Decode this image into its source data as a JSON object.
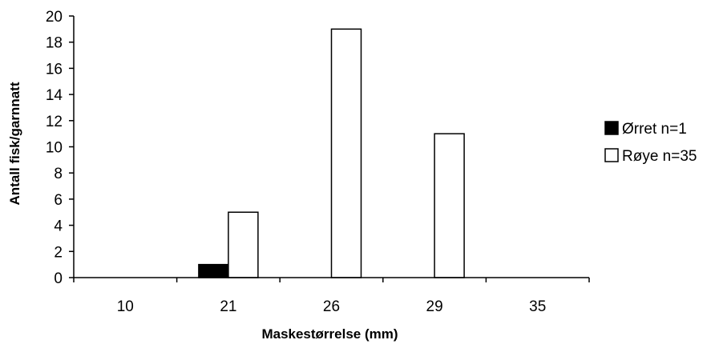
{
  "chart_data": {
    "type": "bar",
    "categories": [
      "10",
      "21",
      "26",
      "29",
      "35"
    ],
    "series": [
      {
        "name": "Ørret n=1",
        "values": [
          0,
          1,
          0,
          0,
          0
        ],
        "color": "#000000"
      },
      {
        "name": "Røye n=35",
        "values": [
          0,
          5,
          19,
          11,
          0
        ],
        "color": "#ffffff"
      }
    ],
    "xlabel": "Maskestørrelse (mm)",
    "ylabel": "Antall fisk/garnnatt",
    "ylim": [
      0,
      20
    ],
    "yticks": [
      "0",
      "2",
      "4",
      "6",
      "8",
      "10",
      "12",
      "14",
      "16",
      "18",
      "20"
    ],
    "grid": false,
    "legend": "right"
  }
}
